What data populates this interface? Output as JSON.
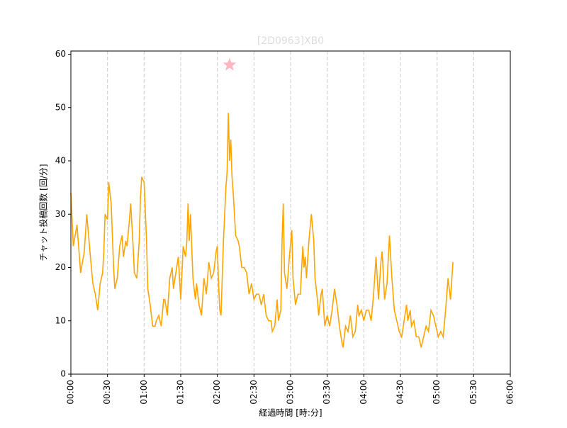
{
  "chart_data": {
    "type": "line",
    "title": "[2D0963]XB0",
    "xlabel": "経過時間 [時:分]",
    "ylabel": "チャット投稿回数 [回/分]",
    "color": "#ffa500",
    "x": [
      0,
      2,
      5,
      8,
      11,
      13,
      16,
      18,
      20,
      22,
      24,
      26,
      27,
      28,
      30,
      31,
      33,
      35,
      36,
      38,
      40,
      42,
      43,
      45,
      46,
      48,
      49,
      51,
      52,
      54,
      56,
      57,
      58,
      60,
      62,
      63,
      65,
      67,
      69,
      70,
      72,
      74,
      76,
      77,
      79,
      81,
      83,
      84,
      86,
      88,
      90,
      92,
      94,
      95,
      96,
      97,
      98,
      100,
      102,
      103,
      105,
      107,
      109,
      111,
      113,
      115,
      117,
      119,
      120,
      121,
      122,
      123,
      125,
      127,
      128,
      129,
      130,
      131,
      132,
      133,
      135,
      137,
      138,
      140,
      142,
      144,
      146,
      148,
      150,
      152,
      154,
      156,
      158,
      160,
      162,
      164,
      165,
      167,
      169,
      170,
      172,
      173,
      174,
      175,
      177,
      179,
      181,
      182,
      184,
      186,
      188,
      190,
      191,
      192,
      193,
      195,
      197,
      199,
      200,
      202,
      203,
      205,
      206,
      208,
      210,
      212,
      214,
      216,
      218,
      220,
      222,
      223,
      225,
      227,
      229,
      231,
      233,
      235,
      236,
      238,
      240,
      242,
      244,
      246,
      248,
      250,
      252,
      254,
      255,
      257,
      259,
      261,
      263,
      265,
      267,
      269,
      271,
      273,
      275,
      276,
      278,
      279,
      281,
      283,
      285,
      287,
      289,
      291,
      293,
      295,
      297,
      299,
      301,
      303,
      305,
      307,
      309,
      311,
      313
    ],
    "values": [
      34,
      24,
      28,
      19,
      23,
      30,
      22,
      17,
      15,
      12,
      17,
      19,
      23,
      30,
      29,
      36,
      32,
      20,
      16,
      18,
      24,
      26,
      22,
      25,
      24,
      29,
      32,
      24,
      19,
      18,
      25,
      33,
      37,
      36,
      25,
      16,
      13,
      9,
      9,
      10,
      11,
      9,
      14,
      14,
      11,
      18,
      20,
      16,
      19,
      22,
      14,
      24,
      22,
      25,
      32,
      25,
      30,
      18,
      14,
      17,
      13,
      11,
      18,
      15,
      21,
      18,
      19,
      23,
      24,
      17,
      12,
      11,
      25,
      35,
      38,
      49,
      40,
      44,
      37,
      34,
      26,
      25,
      24,
      20,
      20,
      19,
      15,
      17,
      14,
      15,
      15,
      13,
      15,
      11,
      10,
      10,
      8,
      9,
      14,
      10,
      12,
      25,
      32,
      19,
      16,
      22,
      27,
      18,
      13,
      15,
      15,
      24,
      20,
      22,
      18,
      25,
      30,
      25,
      18,
      14,
      11,
      15,
      16,
      9,
      11,
      9,
      12,
      16,
      13,
      9,
      6,
      5,
      9,
      8,
      11,
      7,
      8,
      13,
      11,
      12,
      10,
      12,
      12,
      10,
      15,
      22,
      14,
      21,
      23,
      14,
      17,
      26,
      18,
      12,
      10,
      8,
      7,
      10,
      13,
      10,
      12,
      9,
      10,
      7,
      7,
      5,
      7,
      9,
      8,
      12,
      11,
      9,
      7,
      8,
      7,
      12,
      18,
      14,
      21
    ],
    "highlight": {
      "x": 130,
      "y": 58,
      "color": "#ffb6c1"
    },
    "xlim": [
      0,
      360
    ],
    "xticks": [
      {
        "value": 0,
        "label": "00:00"
      },
      {
        "value": 30,
        "label": "00:30"
      },
      {
        "value": 60,
        "label": "01:00"
      },
      {
        "value": 90,
        "label": "01:30"
      },
      {
        "value": 120,
        "label": "02:00"
      },
      {
        "value": 150,
        "label": "02:30"
      },
      {
        "value": 180,
        "label": "03:00"
      },
      {
        "value": 210,
        "label": "03:30"
      },
      {
        "value": 240,
        "label": "04:00"
      },
      {
        "value": 270,
        "label": "04:30"
      },
      {
        "value": 300,
        "label": "05:00"
      },
      {
        "value": 330,
        "label": "05:30"
      },
      {
        "value": 360,
        "label": "06:00"
      }
    ],
    "ylim": [
      0,
      60.6
    ],
    "yticks": [
      0,
      10,
      20,
      30,
      40,
      50,
      60
    ],
    "grid": "x"
  }
}
